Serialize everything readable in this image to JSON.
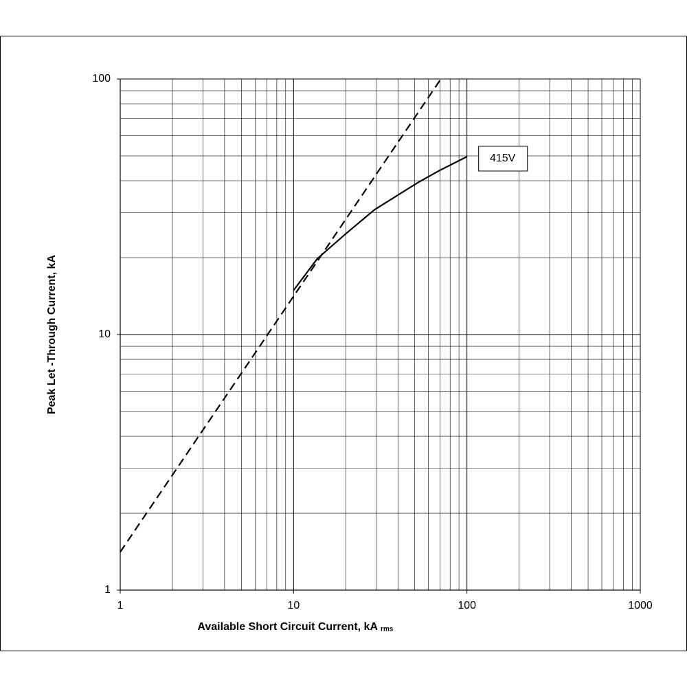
{
  "chart_data": {
    "type": "line",
    "xlabel": "Available Short Circuit Current, kA",
    "xlabel_sub": "rms",
    "ylabel": "Peak Let -Through Current, kA",
    "x_log": true,
    "y_log": true,
    "grid": true,
    "xlim": [
      1,
      1000
    ],
    "ylim": [
      1,
      100
    ],
    "xticks": [
      1,
      10,
      100,
      1000
    ],
    "yticks": [
      1,
      10,
      100
    ],
    "series": [
      {
        "color": "#000000",
        "dash": true,
        "x": [
          1,
          70.7
        ],
        "values": [
          1.41,
          100
        ]
      },
      {
        "color": "#000000",
        "dash": false,
        "x": [
          10,
          13.7,
          20,
          29.3,
          52,
          69.7,
          100
        ],
        "values": [
          14.9,
          19.8,
          24.8,
          30.8,
          39.3,
          43.9,
          49.7
        ],
        "annotation": "415V"
      }
    ]
  }
}
